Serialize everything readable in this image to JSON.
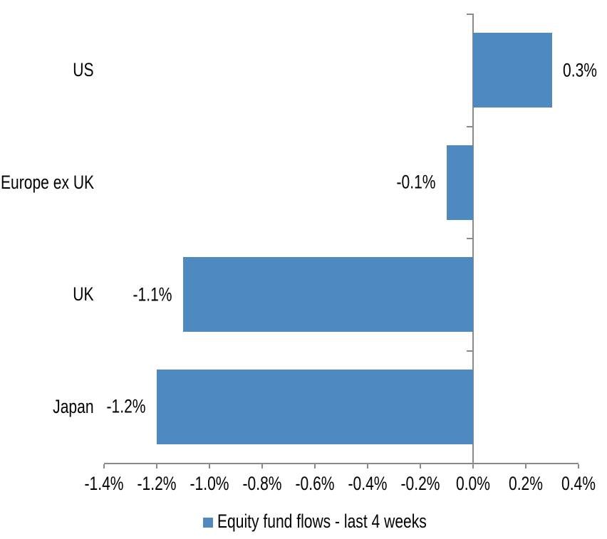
{
  "chart_data": {
    "type": "bar",
    "orientation": "horizontal",
    "title": "",
    "xlabel": "",
    "ylabel": "",
    "categories": [
      "US",
      "Europe ex UK",
      "UK",
      "Japan"
    ],
    "values": [
      0.3,
      -0.1,
      -1.1,
      -1.2
    ],
    "value_labels": [
      "0.3%",
      "-0.1%",
      "-1.1%",
      "-1.2%"
    ],
    "series_name": "Equity fund flows - last 4 weeks",
    "xlim": [
      -1.4,
      0.4
    ],
    "x_tick_values": [
      -1.4,
      -1.2,
      -1.0,
      -0.8,
      -0.6,
      -0.4,
      -0.2,
      0.0,
      0.2,
      0.4
    ],
    "x_tick_labels": [
      "-1.4%",
      "-1.2%",
      "-1.0%",
      "-0.8%",
      "-0.6%",
      "-0.4%",
      "-0.2%",
      "0.0%",
      "0.2%",
      "0.4%"
    ],
    "grid": false,
    "legend_position": "bottom",
    "colors": {
      "bar": "#4E8ABF",
      "axis": "#8A8A8A",
      "text": "#000000",
      "background": "#FFFFFF"
    }
  }
}
